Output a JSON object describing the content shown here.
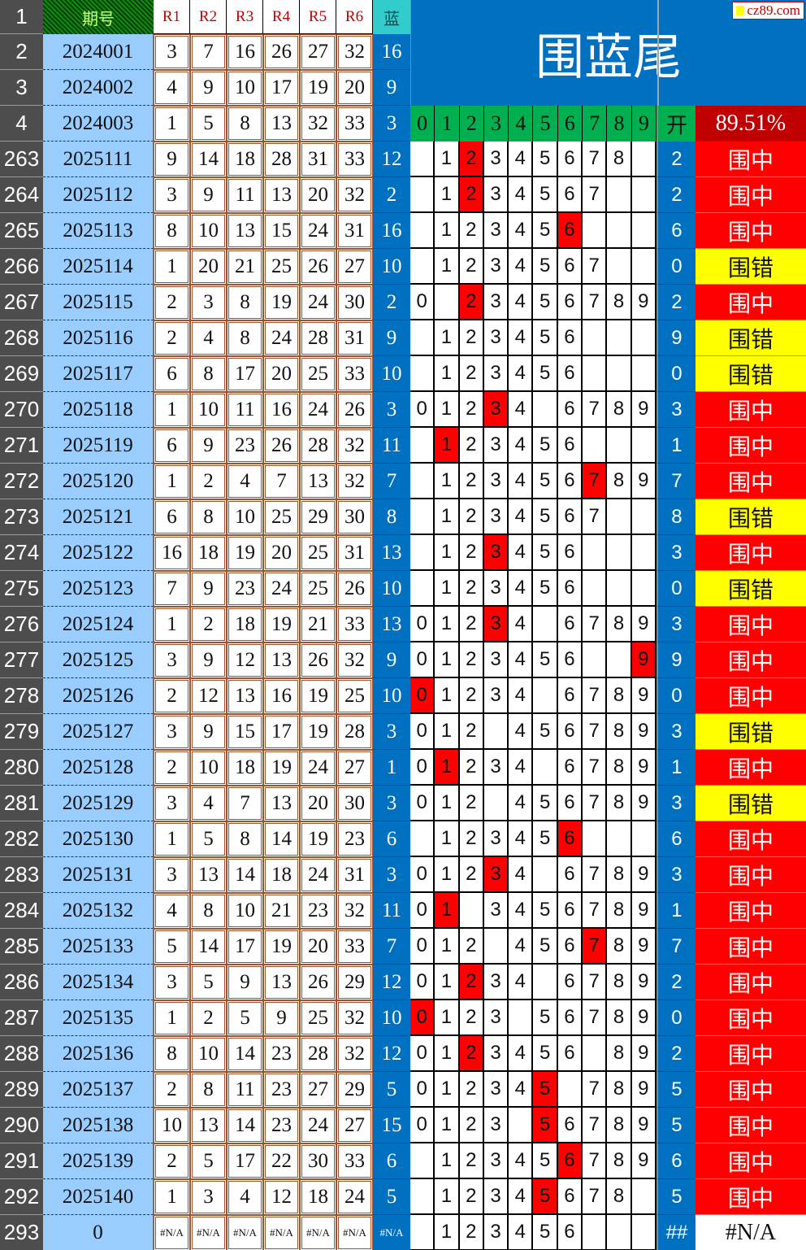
{
  "header": {
    "row_numbers": [
      "1",
      "2",
      "3",
      "4"
    ],
    "period_label": "期号",
    "red_labels": [
      "R1",
      "R2",
      "R3",
      "R4",
      "R5",
      "R6"
    ],
    "blue_label": "蓝",
    "title": "围蓝尾",
    "logo_text": "cz89.com",
    "digit_labels": [
      "0",
      "1",
      "2",
      "3",
      "4",
      "5",
      "6",
      "7",
      "8",
      "9"
    ],
    "open_label": "开",
    "hit_rate": "89.51%"
  },
  "top_rows": [
    {
      "row": "2",
      "period": "2024001",
      "reds": [
        "3",
        "7",
        "16",
        "26",
        "27",
        "32"
      ],
      "blue": "16"
    },
    {
      "row": "3",
      "period": "2024002",
      "reds": [
        "4",
        "9",
        "10",
        "17",
        "19",
        "20"
      ],
      "blue": "9"
    },
    {
      "row": "4",
      "period": "2024003",
      "reds": [
        "1",
        "5",
        "8",
        "13",
        "32",
        "33"
      ],
      "blue": "3"
    }
  ],
  "colors": {
    "hit": "#ff0000",
    "miss": "#ffff00",
    "blue": "#0070c0",
    "green": "#00b050",
    "period_bg": "#99ccff"
  },
  "rows": [
    {
      "row": "263",
      "period": "2025111",
      "reds": [
        "9",
        "14",
        "18",
        "28",
        "31",
        "33"
      ],
      "blue": "12",
      "digits": "12345678",
      "hl": "2",
      "open": "2",
      "result": "围中"
    },
    {
      "row": "264",
      "period": "2025112",
      "reds": [
        "3",
        "9",
        "11",
        "13",
        "20",
        "32"
      ],
      "blue": "2",
      "digits": "1234567",
      "hl": "2",
      "open": "2",
      "result": "围中"
    },
    {
      "row": "265",
      "period": "2025113",
      "reds": [
        "8",
        "10",
        "13",
        "15",
        "24",
        "31"
      ],
      "blue": "16",
      "digits": "123456",
      "hl": "6",
      "open": "6",
      "result": "围中"
    },
    {
      "row": "266",
      "period": "2025114",
      "reds": [
        "1",
        "20",
        "21",
        "25",
        "26",
        "27"
      ],
      "blue": "10",
      "digits": "1234567",
      "hl": "",
      "open": "0",
      "result": "围错"
    },
    {
      "row": "267",
      "period": "2025115",
      "reds": [
        "2",
        "3",
        "8",
        "19",
        "24",
        "30"
      ],
      "blue": "2",
      "digits": "023456789",
      "hl": "2",
      "open": "2",
      "result": "围中"
    },
    {
      "row": "268",
      "period": "2025116",
      "reds": [
        "2",
        "4",
        "8",
        "24",
        "28",
        "31"
      ],
      "blue": "9",
      "digits": "123456",
      "hl": "",
      "open": "9",
      "result": "围错"
    },
    {
      "row": "269",
      "period": "2025117",
      "reds": [
        "6",
        "8",
        "17",
        "20",
        "25",
        "33"
      ],
      "blue": "10",
      "digits": "123456",
      "hl": "",
      "open": "0",
      "result": "围错"
    },
    {
      "row": "270",
      "period": "2025118",
      "reds": [
        "1",
        "10",
        "11",
        "16",
        "24",
        "26"
      ],
      "blue": "3",
      "digits": "012346789",
      "hl": "3",
      "open": "3",
      "result": "围中"
    },
    {
      "row": "271",
      "period": "2025119",
      "reds": [
        "6",
        "9",
        "23",
        "26",
        "28",
        "32"
      ],
      "blue": "11",
      "digits": "123456",
      "hl": "1",
      "open": "1",
      "result": "围中"
    },
    {
      "row": "272",
      "period": "2025120",
      "reds": [
        "1",
        "2",
        "4",
        "7",
        "13",
        "32"
      ],
      "blue": "7",
      "digits": "123456789",
      "hl": "7",
      "open": "7",
      "result": "围中"
    },
    {
      "row": "273",
      "period": "2025121",
      "reds": [
        "6",
        "8",
        "10",
        "25",
        "29",
        "30"
      ],
      "blue": "8",
      "digits": "1234567",
      "hl": "",
      "open": "8",
      "result": "围错"
    },
    {
      "row": "274",
      "period": "2025122",
      "reds": [
        "16",
        "18",
        "19",
        "20",
        "25",
        "31"
      ],
      "blue": "13",
      "digits": "123456",
      "hl": "3",
      "open": "3",
      "result": "围中"
    },
    {
      "row": "275",
      "period": "2025123",
      "reds": [
        "7",
        "9",
        "23",
        "24",
        "25",
        "26"
      ],
      "blue": "10",
      "digits": "123456",
      "hl": "",
      "open": "0",
      "result": "围错"
    },
    {
      "row": "276",
      "period": "2025124",
      "reds": [
        "1",
        "2",
        "18",
        "19",
        "21",
        "33"
      ],
      "blue": "13",
      "digits": "012346789",
      "hl": "3",
      "open": "3",
      "result": "围中"
    },
    {
      "row": "277",
      "period": "2025125",
      "reds": [
        "3",
        "9",
        "12",
        "13",
        "26",
        "32"
      ],
      "blue": "9",
      "digits": "01234569",
      "hl": "9",
      "open": "9",
      "result": "围中"
    },
    {
      "row": "278",
      "period": "2025126",
      "reds": [
        "2",
        "12",
        "13",
        "16",
        "19",
        "25"
      ],
      "blue": "10",
      "digits": "012346789",
      "hl": "0",
      "open": "0",
      "result": "围中"
    },
    {
      "row": "279",
      "period": "2025127",
      "reds": [
        "3",
        "9",
        "15",
        "17",
        "19",
        "28"
      ],
      "blue": "3",
      "digits": "012456789",
      "hl": "",
      "open": "3",
      "result": "围错"
    },
    {
      "row": "280",
      "period": "2025128",
      "reds": [
        "2",
        "10",
        "18",
        "19",
        "24",
        "27"
      ],
      "blue": "1",
      "digits": "012346789",
      "hl": "1",
      "open": "1",
      "result": "围中"
    },
    {
      "row": "281",
      "period": "2025129",
      "reds": [
        "3",
        "4",
        "7",
        "13",
        "20",
        "30"
      ],
      "blue": "3",
      "digits": "012456789",
      "hl": "",
      "open": "3",
      "result": "围错"
    },
    {
      "row": "282",
      "period": "2025130",
      "reds": [
        "1",
        "5",
        "8",
        "14",
        "19",
        "23"
      ],
      "blue": "6",
      "digits": "123456",
      "hl": "6",
      "open": "6",
      "result": "围中"
    },
    {
      "row": "283",
      "period": "2025131",
      "reds": [
        "3",
        "13",
        "14",
        "18",
        "24",
        "31"
      ],
      "blue": "3",
      "digits": "012346789",
      "hl": "3",
      "open": "3",
      "result": "围中"
    },
    {
      "row": "284",
      "period": "2025132",
      "reds": [
        "4",
        "8",
        "10",
        "21",
        "23",
        "32"
      ],
      "blue": "11",
      "digits": "013456789",
      "hl": "1",
      "open": "1",
      "result": "围中"
    },
    {
      "row": "285",
      "period": "2025133",
      "reds": [
        "5",
        "14",
        "17",
        "19",
        "20",
        "33"
      ],
      "blue": "7",
      "digits": "012456789",
      "hl": "7",
      "open": "7",
      "result": "围中"
    },
    {
      "row": "286",
      "period": "2025134",
      "reds": [
        "3",
        "5",
        "9",
        "13",
        "26",
        "29"
      ],
      "blue": "12",
      "digits": "012346789",
      "hl": "2",
      "open": "2",
      "result": "围中"
    },
    {
      "row": "287",
      "period": "2025135",
      "reds": [
        "1",
        "2",
        "5",
        "9",
        "25",
        "32"
      ],
      "blue": "10",
      "digits": "012356789",
      "hl": "0",
      "open": "0",
      "result": "围中"
    },
    {
      "row": "288",
      "period": "2025136",
      "reds": [
        "8",
        "10",
        "14",
        "23",
        "28",
        "32"
      ],
      "blue": "12",
      "digits": "012345689",
      "hl": "2",
      "open": "2",
      "result": "围中"
    },
    {
      "row": "289",
      "period": "2025137",
      "reds": [
        "2",
        "8",
        "11",
        "23",
        "27",
        "29"
      ],
      "blue": "5",
      "digits": "012345789",
      "hl": "5",
      "open": "5",
      "result": "围中"
    },
    {
      "row": "290",
      "period": "2025138",
      "reds": [
        "10",
        "13",
        "14",
        "23",
        "24",
        "27"
      ],
      "blue": "15",
      "digits": "012356789",
      "hl": "5",
      "open": "5",
      "result": "围中"
    },
    {
      "row": "291",
      "period": "2025139",
      "reds": [
        "2",
        "5",
        "17",
        "22",
        "30",
        "33"
      ],
      "blue": "6",
      "digits": "123456789",
      "hl": "6",
      "open": "6",
      "result": "围中"
    },
    {
      "row": "292",
      "period": "2025140",
      "reds": [
        "1",
        "3",
        "4",
        "12",
        "18",
        "24"
      ],
      "blue": "5",
      "digits": "12345678",
      "hl": "5",
      "open": "5",
      "result": "围中"
    },
    {
      "row": "293",
      "period": "0",
      "reds": [
        "#N/A",
        "#N/A",
        "#N/A",
        "#N/A",
        "#N/A",
        "#N/A"
      ],
      "blue": "#N/A",
      "digits": "123456",
      "hl": "",
      "open": "##",
      "result": "#N/A"
    }
  ]
}
